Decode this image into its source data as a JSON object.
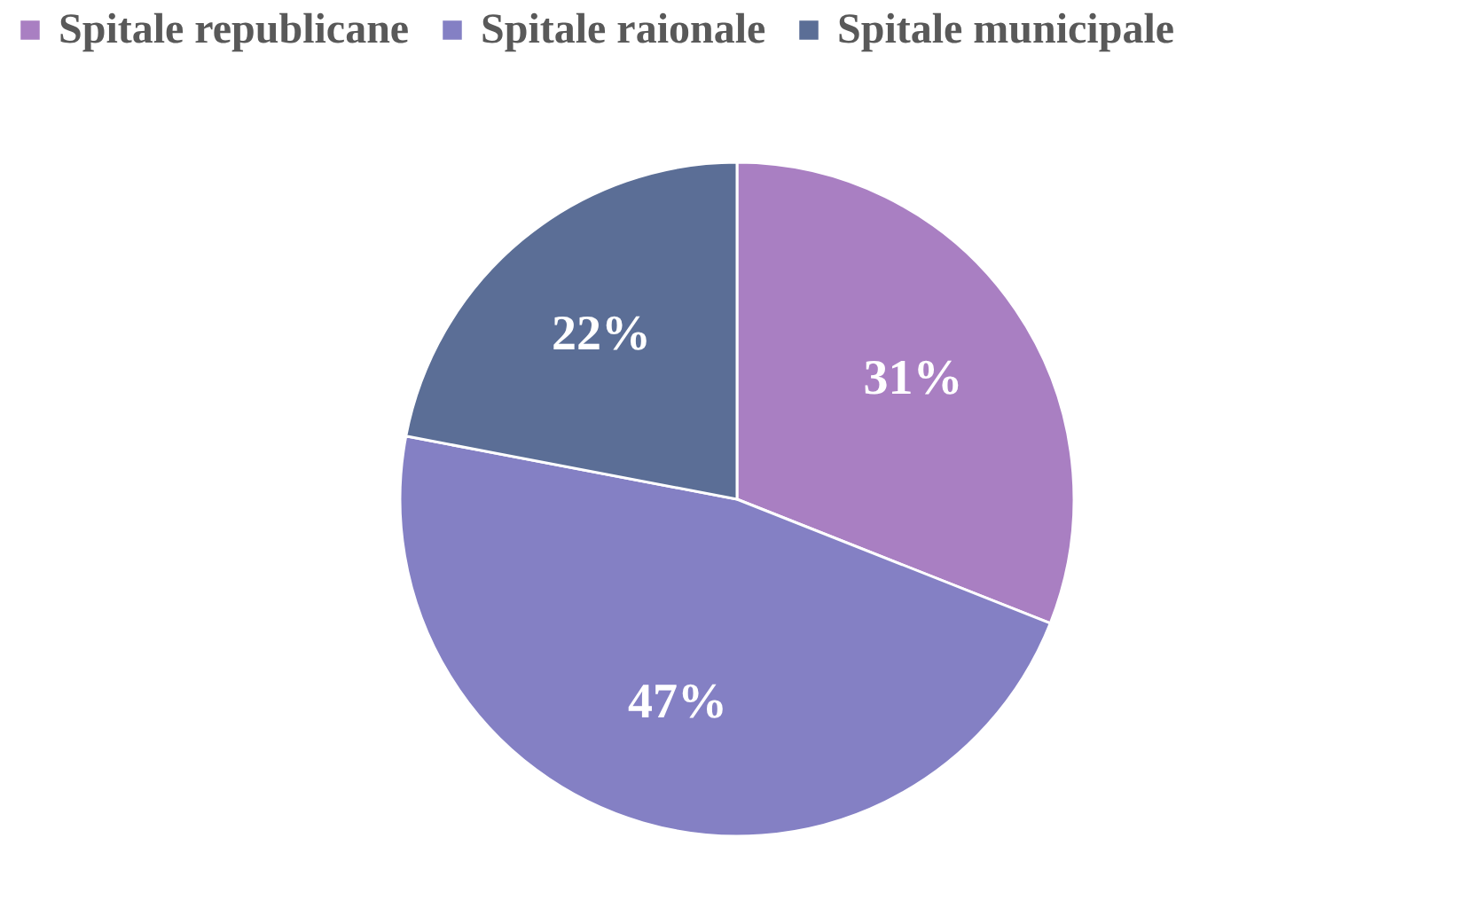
{
  "chart_data": {
    "type": "pie",
    "categories": [
      "Spitale republicane",
      "Spitale raionale",
      "Spitale municipale"
    ],
    "values": [
      31,
      47,
      22
    ],
    "colors": [
      "#a97fc2",
      "#8480c4",
      "#5b6e96"
    ],
    "value_labels": [
      "31%",
      "47%",
      "22%"
    ],
    "legend": "top"
  }
}
